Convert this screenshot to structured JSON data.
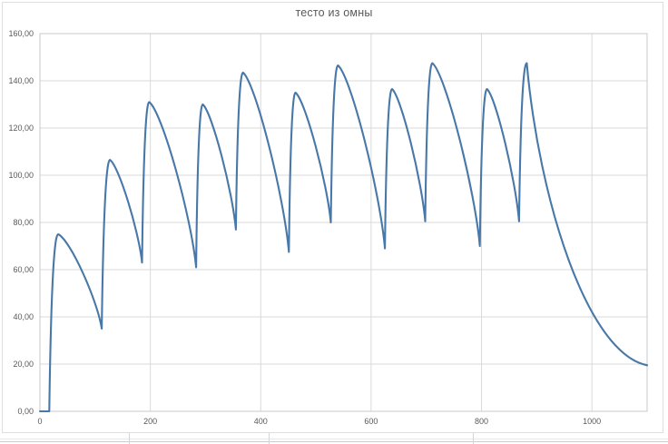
{
  "chart_data": {
    "type": "line",
    "title": "тесто из омны",
    "xlabel": "",
    "ylabel": "",
    "xlim": [
      0,
      1100
    ],
    "ylim": [
      0,
      160
    ],
    "grid": "both",
    "legend": "none",
    "x_ticks": [
      0,
      200,
      400,
      600,
      800,
      1000
    ],
    "x_tick_labels": [
      "0",
      "200",
      "400",
      "600",
      "800",
      "1000"
    ],
    "y_ticks": [
      0,
      20,
      40,
      60,
      80,
      100,
      120,
      140,
      160
    ],
    "y_tick_labels": [
      "0,00",
      "20,00",
      "40,00",
      "60,00",
      "80,00",
      "100,00",
      "120,00",
      "140,00",
      "160,00"
    ],
    "series": [
      {
        "name": "series-1",
        "keypoints": [
          [
            0,
            0
          ],
          [
            17,
            0
          ],
          [
            33,
            75
          ],
          [
            112,
            35
          ],
          [
            127,
            106.5
          ],
          [
            185,
            63
          ],
          [
            198,
            131
          ],
          [
            283,
            61
          ],
          [
            295,
            130
          ],
          [
            355,
            77
          ],
          [
            368,
            143.5
          ],
          [
            451,
            67.5
          ],
          [
            463,
            135
          ],
          [
            527,
            80
          ],
          [
            540,
            146.5
          ],
          [
            625,
            69
          ],
          [
            638,
            136.5
          ],
          [
            698,
            80.5
          ],
          [
            711,
            147.5
          ],
          [
            797,
            70
          ],
          [
            810,
            136.5
          ],
          [
            868,
            80.5
          ],
          [
            882,
            147.5
          ],
          [
            1100,
            19.5
          ]
        ]
      }
    ]
  },
  "colors": {
    "line": "#4878a8",
    "gridline": "#d9d9d9",
    "plot_border": "#c6c9cc",
    "text": "#595959",
    "frame_border": "#dcdee0"
  }
}
